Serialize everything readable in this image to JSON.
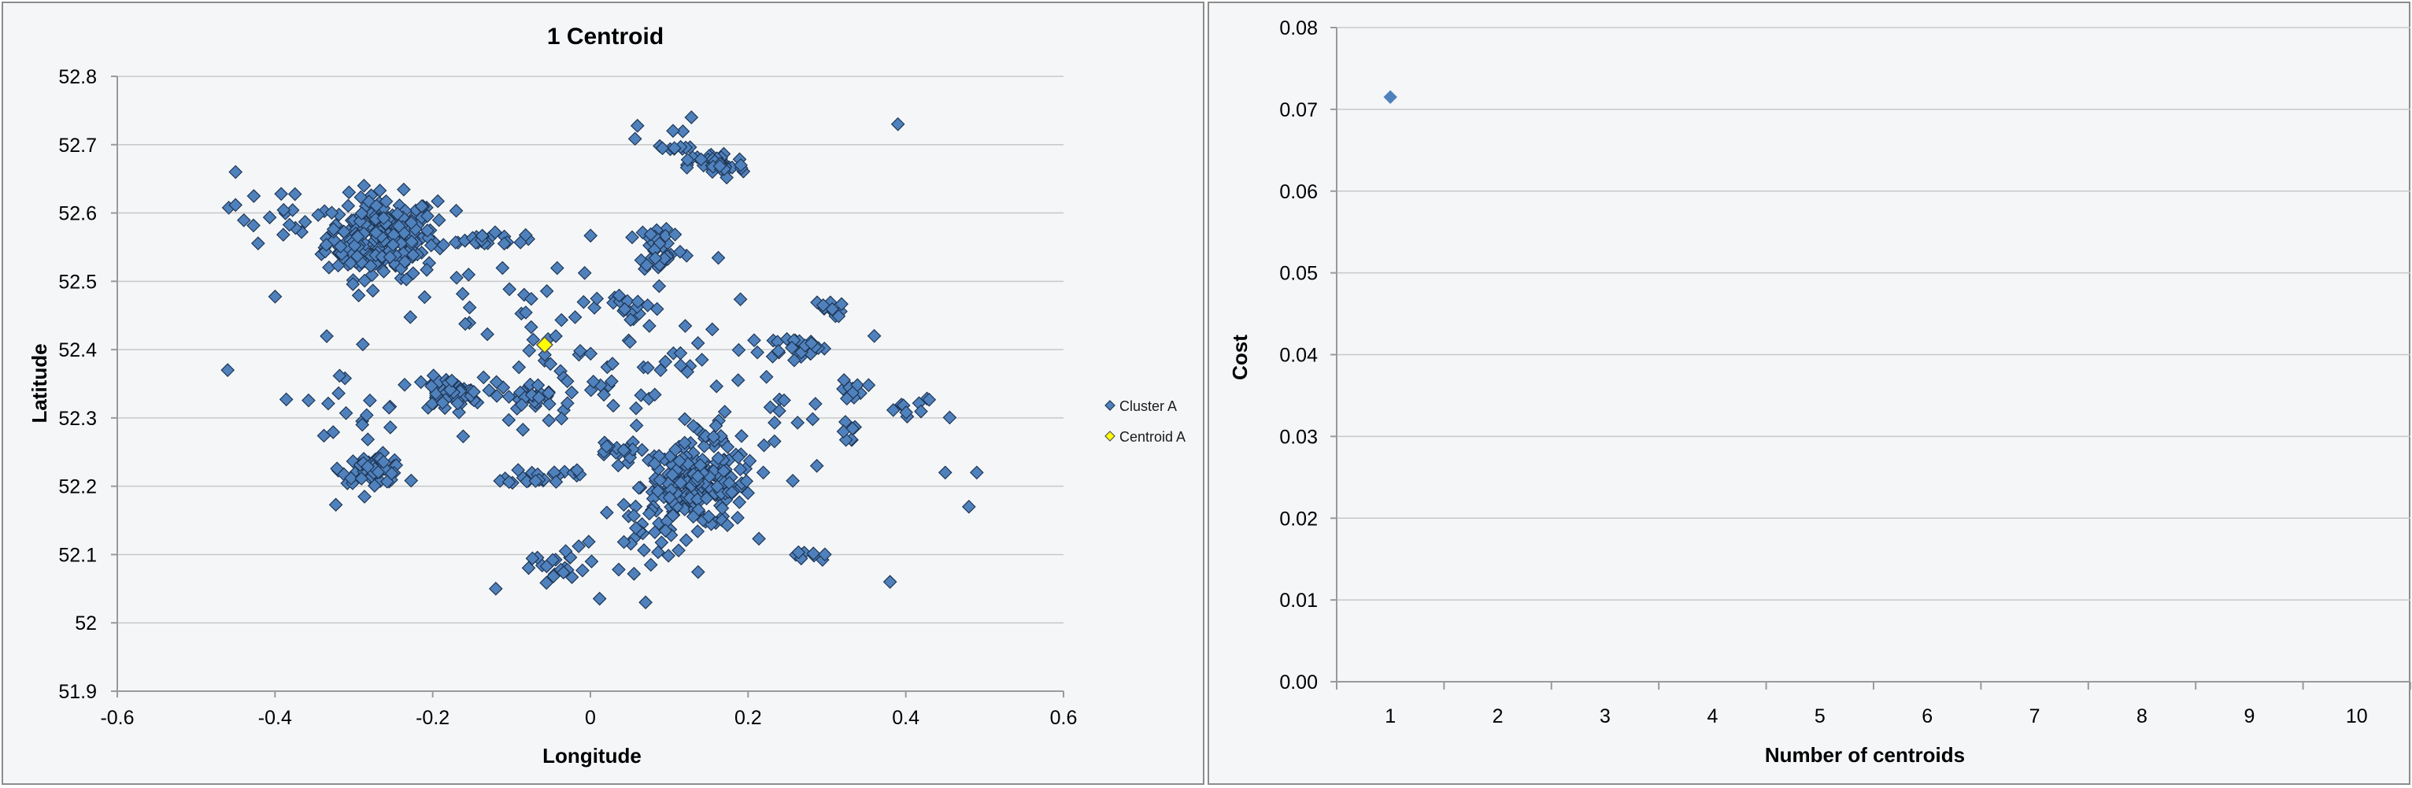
{
  "colors": {
    "cluster_fill": "#4f81bd",
    "cluster_stroke": "#1f3654",
    "centroid_fill": "#ffff00",
    "centroid_stroke": "#555555",
    "cost_fill": "#4f81bd"
  },
  "chart_data": [
    {
      "type": "scatter",
      "title": "1 Centroid",
      "xlabel": "Longitude",
      "ylabel": "Latitude",
      "xlim": [
        -0.6,
        0.6
      ],
      "ylim": [
        51.9,
        52.8
      ],
      "xticks": [
        "-0.6",
        "-0.4",
        "-0.2",
        "0",
        "0.2",
        "0.4",
        "0.6"
      ],
      "yticks": [
        "51.9",
        "52",
        "52.1",
        "52.2",
        "52.3",
        "52.4",
        "52.5",
        "52.6",
        "52.7",
        "52.8"
      ],
      "grid": "horizontal",
      "legend_position": "right",
      "marker": "diamond",
      "series": [
        {
          "name": "Cluster A",
          "clusters": [
            {
              "center": [
                -0.265,
                52.565
              ],
              "spread": [
                0.035,
                0.03
              ],
              "count": 260
            },
            {
              "center": [
                0.135,
                52.2
              ],
              "spread": [
                0.035,
                0.03
              ],
              "count": 220
            },
            {
              "center": [
                -0.275,
                52.225
              ],
              "spread": [
                0.02,
                0.01
              ],
              "count": 55
            },
            {
              "center": [
                -0.18,
                52.335
              ],
              "spread": [
                0.022,
                0.012
              ],
              "count": 50
            },
            {
              "center": [
                0.16,
                52.67
              ],
              "spread": [
                0.018,
                0.01
              ],
              "count": 40
            },
            {
              "center": [
                0.09,
                52.55
              ],
              "spread": [
                0.015,
                0.02
              ],
              "count": 35
            },
            {
              "center": [
                -0.075,
                52.33
              ],
              "spread": [
                0.015,
                0.01
              ],
              "count": 30
            },
            {
              "center": [
                -0.065,
                52.215
              ],
              "spread": [
                0.02,
                0.006
              ],
              "count": 25
            },
            {
              "center": [
                0.26,
                52.405
              ],
              "spread": [
                0.02,
                0.008
              ],
              "count": 25
            },
            {
              "center": [
                -0.14,
                52.56
              ],
              "spread": [
                0.03,
                0.005
              ],
              "count": 20
            },
            {
              "center": [
                0.03,
                52.25
              ],
              "spread": [
                0.015,
                0.008
              ],
              "count": 15
            },
            {
              "center": [
                0.3,
                52.46
              ],
              "spread": [
                0.01,
                0.006
              ],
              "count": 12
            },
            {
              "center": [
                0.335,
                52.34
              ],
              "spread": [
                0.008,
                0.008
              ],
              "count": 10
            },
            {
              "center": [
                0.325,
                52.28
              ],
              "spread": [
                0.008,
                0.008
              ],
              "count": 8
            },
            {
              "center": [
                0.28,
                52.1
              ],
              "spread": [
                0.01,
                0.006
              ],
              "count": 10
            },
            {
              "center": [
                -0.41,
                52.6
              ],
              "spread": [
                0.025,
                0.02
              ],
              "count": 15
            },
            {
              "center": [
                0.1,
                52.7
              ],
              "spread": [
                0.02,
                0.02
              ],
              "count": 15
            },
            {
              "center": [
                -0.04,
                52.08
              ],
              "spread": [
                0.03,
                0.015
              ],
              "count": 20
            },
            {
              "center": [
                0.05,
                52.46
              ],
              "spread": [
                0.02,
                0.01
              ],
              "count": 15
            },
            {
              "center": [
                0.41,
                52.31
              ],
              "spread": [
                0.02,
                0.01
              ],
              "count": 10
            },
            {
              "center": [
                0.04,
                52.35
              ],
              "spread": [
                0.09,
                0.06
              ],
              "count": 60
            },
            {
              "center": [
                -0.1,
                52.45
              ],
              "spread": [
                0.1,
                0.07
              ],
              "count": 40
            },
            {
              "center": [
                -0.3,
                52.33
              ],
              "spread": [
                0.05,
                0.05
              ],
              "count": 20
            },
            {
              "center": [
                0.2,
                52.3
              ],
              "spread": [
                0.05,
                0.06
              ],
              "count": 25
            },
            {
              "center": [
                0.08,
                52.12
              ],
              "spread": [
                0.05,
                0.03
              ],
              "count": 25
            }
          ],
          "outliers": [
            [
              0.39,
              52.73
            ],
            [
              -0.46,
              52.37
            ],
            [
              0.48,
              52.17
            ],
            [
              0.38,
              52.06
            ],
            [
              0.07,
              52.03
            ],
            [
              0.49,
              52.22
            ],
            [
              -0.12,
              52.05
            ],
            [
              0.45,
              52.22
            ],
            [
              -0.45,
              52.66
            ],
            [
              0.36,
              52.42
            ]
          ]
        },
        {
          "name": "Centroid A",
          "points": [
            [
              -0.058,
              52.407
            ]
          ]
        }
      ]
    },
    {
      "type": "scatter",
      "title": "",
      "xlabel": "Number of centroids",
      "ylabel": "Cost",
      "categories": [
        "1",
        "2",
        "3",
        "4",
        "5",
        "6",
        "7",
        "8",
        "9",
        "10"
      ],
      "ylim": [
        0,
        0.08
      ],
      "yticks": [
        "0.00",
        "0.01",
        "0.02",
        "0.03",
        "0.04",
        "0.05",
        "0.06",
        "0.07",
        "0.08"
      ],
      "grid": "horizontal",
      "marker": "diamond",
      "series": [
        {
          "values": [
            0.0715,
            null,
            null,
            null,
            null,
            null,
            null,
            null,
            null,
            null
          ]
        }
      ]
    }
  ]
}
